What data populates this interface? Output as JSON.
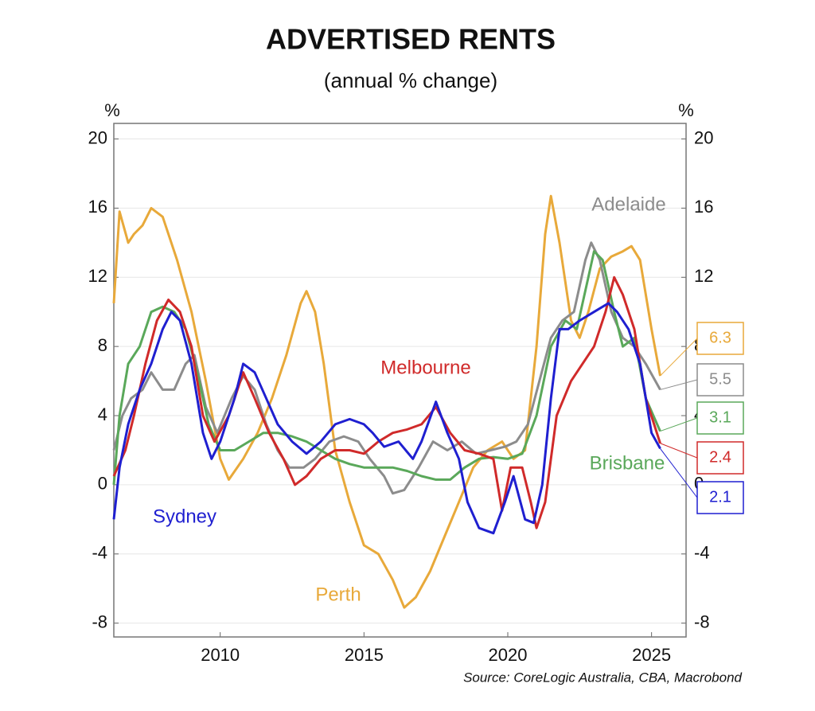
{
  "chart_data": {
    "type": "line",
    "title": "ADVERTISED RENTS",
    "subtitle": "(annual % change)",
    "y_unit": "%",
    "source": "Source: CoreLogic Australia, CBA, Macrobond",
    "xlim": [
      2006.3,
      2026.2
    ],
    "xticks": [
      2010,
      2015,
      2020,
      2025
    ],
    "ylim": [
      -8.8,
      20.9
    ],
    "yticks": [
      -8,
      -4,
      0,
      4,
      8,
      12,
      16,
      20
    ],
    "grid": true,
    "series": [
      {
        "name": "Perth",
        "color": "#e8a93a",
        "end_label": 6.3,
        "x": [
          2006.3,
          2006.5,
          2006.8,
          2007.0,
          2007.3,
          2007.6,
          2008.0,
          2008.5,
          2009.0,
          2009.5,
          2010.0,
          2010.3,
          2010.8,
          2011.3,
          2011.8,
          2012.3,
          2012.8,
          2013.0,
          2013.3,
          2013.6,
          2014.0,
          2014.5,
          2015.0,
          2015.5,
          2016.0,
          2016.4,
          2016.8,
          2017.3,
          2017.8,
          2018.3,
          2018.8,
          2019.3,
          2019.8,
          2020.2,
          2020.6,
          2021.0,
          2021.3,
          2021.5,
          2021.8,
          2022.2,
          2022.5,
          2022.8,
          2023.2,
          2023.6,
          2024.0,
          2024.3,
          2024.6,
          2025.0,
          2025.3
        ],
        "values": [
          10.5,
          15.8,
          14.0,
          14.5,
          15.0,
          16.0,
          15.5,
          13,
          10,
          6,
          1.5,
          0.3,
          1.5,
          3,
          5,
          7.5,
          10.5,
          11.2,
          10,
          7,
          2,
          -1,
          -3.5,
          -4.0,
          -5.5,
          -7.1,
          -6.5,
          -5,
          -3,
          -1,
          1,
          2,
          2.5,
          1.5,
          2,
          8,
          14.5,
          16.7,
          14,
          9.5,
          8.5,
          10,
          12.5,
          13.2,
          13.5,
          13.8,
          13,
          9,
          6.3
        ]
      },
      {
        "name": "Adelaide",
        "color": "#8c8c8c",
        "end_label": 5.5,
        "x": [
          2006.3,
          2006.6,
          2006.9,
          2007.3,
          2007.6,
          2008.0,
          2008.4,
          2008.8,
          2009.1,
          2009.5,
          2009.9,
          2010.4,
          2010.8,
          2011.2,
          2011.6,
          2012.0,
          2012.4,
          2012.9,
          2013.3,
          2013.8,
          2014.3,
          2014.8,
          2015.2,
          2015.7,
          2016.0,
          2016.4,
          2016.9,
          2017.4,
          2017.9,
          2018.4,
          2018.9,
          2019.4,
          2019.9,
          2020.3,
          2020.7,
          2021.1,
          2021.5,
          2021.9,
          2022.3,
          2022.7,
          2022.9,
          2023.2,
          2023.6,
          2024.0,
          2024.4,
          2024.8,
          2025.3
        ],
        "values": [
          2,
          4,
          5,
          5.5,
          6.5,
          5.5,
          5.5,
          7,
          7.5,
          4.5,
          3,
          5,
          6.3,
          5.5,
          3.5,
          2,
          1,
          1,
          1.5,
          2.5,
          2.8,
          2.5,
          1.5,
          0.5,
          -0.5,
          -0.3,
          1,
          2.5,
          2,
          2.5,
          1.8,
          2,
          2.2,
          2.5,
          3.5,
          6,
          8.5,
          9.5,
          10,
          13,
          14,
          13,
          10,
          8.5,
          8,
          7,
          5.5
        ]
      },
      {
        "name": "Brisbane",
        "color": "#5aa85a",
        "end_label": 3.1,
        "x": [
          2006.3,
          2006.5,
          2006.8,
          2007.2,
          2007.6,
          2008.0,
          2008.4,
          2008.8,
          2009.2,
          2009.6,
          2010.0,
          2010.5,
          2011.0,
          2011.5,
          2012.0,
          2012.5,
          2013.0,
          2013.5,
          2014.0,
          2014.5,
          2015.0,
          2015.5,
          2016.0,
          2016.5,
          2017.0,
          2017.5,
          2018.0,
          2018.5,
          2019.0,
          2019.5,
          2020.0,
          2020.5,
          2021.0,
          2021.5,
          2022.0,
          2022.4,
          2022.8,
          2023.0,
          2023.3,
          2023.7,
          2024.0,
          2024.4,
          2024.8,
          2025.3
        ],
        "values": [
          0,
          4,
          7,
          8,
          10,
          10.3,
          10,
          9,
          6.5,
          3.5,
          2,
          2,
          2.5,
          3,
          3,
          2.8,
          2.5,
          2,
          1.5,
          1.2,
          1.0,
          1,
          1.0,
          0.8,
          0.5,
          0.3,
          0.3,
          1,
          1.5,
          1.6,
          1.5,
          1.8,
          4,
          8,
          9.5,
          9,
          12,
          13.5,
          13,
          10,
          8,
          8.5,
          5,
          3.1
        ]
      },
      {
        "name": "Melbourne",
        "color": "#d02a2a",
        "end_label": 2.4,
        "x": [
          2006.3,
          2006.7,
          2007.0,
          2007.4,
          2007.8,
          2008.2,
          2008.6,
          2009.0,
          2009.4,
          2009.8,
          2010.3,
          2010.8,
          2011.2,
          2011.7,
          2012.2,
          2012.6,
          2013.0,
          2013.5,
          2014.0,
          2014.5,
          2015.0,
          2015.5,
          2016.0,
          2016.5,
          2017.0,
          2017.5,
          2018.0,
          2018.5,
          2019.0,
          2019.5,
          2019.8,
          2020.1,
          2020.5,
          2020.8,
          2021.0,
          2021.3,
          2021.7,
          2022.2,
          2022.6,
          2023.0,
          2023.4,
          2023.7,
          2024.0,
          2024.4,
          2024.8,
          2025.3
        ],
        "values": [
          0.5,
          2,
          4,
          7,
          9.5,
          10.7,
          10,
          8,
          4,
          2.5,
          4,
          6.5,
          5,
          3,
          1.5,
          0,
          0.5,
          1.5,
          2,
          2.0,
          1.8,
          2.5,
          3,
          3.2,
          3.5,
          4.5,
          3,
          2,
          1.8,
          1.5,
          -1.5,
          1,
          1,
          -1,
          -2.5,
          -1,
          4,
          6,
          7,
          8,
          10,
          12,
          11,
          9,
          5,
          2.4
        ]
      },
      {
        "name": "Sydney",
        "color": "#1f1fd0",
        "end_label": 2.1,
        "x": [
          2006.3,
          2006.5,
          2006.8,
          2007.2,
          2007.6,
          2008.0,
          2008.3,
          2008.6,
          2009.0,
          2009.4,
          2009.7,
          2010.0,
          2010.5,
          2010.8,
          2011.2,
          2011.6,
          2012.0,
          2012.5,
          2013.0,
          2013.5,
          2014.0,
          2014.5,
          2015.0,
          2015.3,
          2015.7,
          2016.2,
          2016.7,
          2017.0,
          2017.5,
          2017.9,
          2018.3,
          2018.6,
          2019.0,
          2019.5,
          2019.9,
          2020.2,
          2020.6,
          2020.9,
          2021.2,
          2021.5,
          2021.8,
          2022.1,
          2022.5,
          2023.0,
          2023.5,
          2023.8,
          2024.2,
          2024.6,
          2025.0,
          2025.3
        ],
        "values": [
          -2,
          1,
          3.5,
          5.5,
          7,
          9,
          10,
          9.5,
          7,
          3,
          1.5,
          2.5,
          5,
          7,
          6.5,
          5,
          3.5,
          2.5,
          1.8,
          2.5,
          3.5,
          3.8,
          3.5,
          3,
          2.2,
          2.5,
          1.5,
          2.5,
          4.8,
          3,
          1.5,
          -1,
          -2.5,
          -2.8,
          -1,
          0.5,
          -2,
          -2.2,
          0,
          5,
          9,
          9,
          9.5,
          10,
          10.5,
          10,
          9,
          7,
          3,
          2.1
        ]
      }
    ]
  }
}
